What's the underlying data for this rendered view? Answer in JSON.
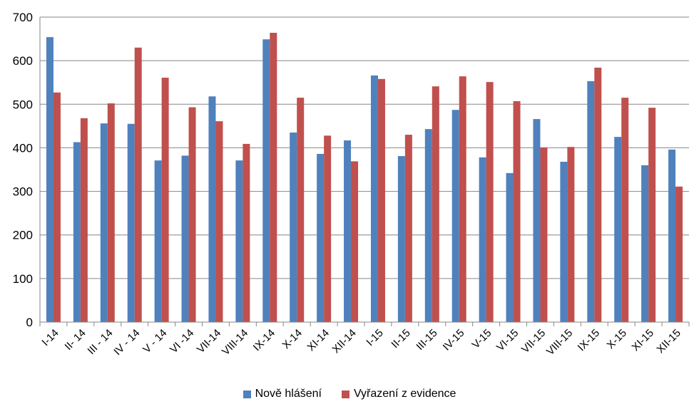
{
  "chart_data": {
    "type": "bar",
    "title": "",
    "xlabel": "",
    "ylabel": "",
    "ylim": [
      0,
      700
    ],
    "yticks": [
      0,
      100,
      200,
      300,
      400,
      500,
      600,
      700
    ],
    "grid": true,
    "legend_position": "bottom",
    "categories": [
      "I-14",
      "II- 14",
      "III - 14",
      "IV - 14",
      "V - 14",
      "VI -14",
      "VII-14",
      "VIII-14",
      "IX-14",
      "X-14",
      "XI-14",
      "XII-14",
      "I-15",
      "II-15",
      "III-15",
      "IV-15",
      "V-15",
      "VI-15",
      "VII-15",
      "VIII-15",
      "IX-15",
      "X-15",
      "XI-15",
      "XII-15"
    ],
    "series": [
      {
        "name": "Nově hlášení",
        "color": "#4f81bd",
        "values": [
          654,
          413,
          456,
          455,
          371,
          382,
          518,
          371,
          649,
          435,
          386,
          417,
          566,
          381,
          443,
          487,
          378,
          342,
          466,
          368,
          553,
          425,
          360,
          396
        ]
      },
      {
        "name": "Vyřazení z evidence",
        "color": "#c0504d",
        "values": [
          527,
          468,
          502,
          630,
          561,
          493,
          461,
          409,
          664,
          515,
          428,
          369,
          558,
          430,
          541,
          564,
          551,
          507,
          401,
          402,
          584,
          515,
          492,
          311
        ]
      }
    ]
  }
}
